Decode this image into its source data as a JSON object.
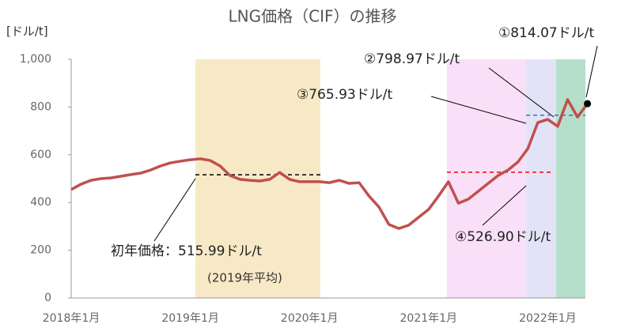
{
  "chart_data": {
    "type": "line",
    "title": "LNG価格（CIF）の推移",
    "y_label": "[ドル/t]",
    "categories": [
      "2018年1月",
      null,
      null,
      null,
      null,
      null,
      null,
      null,
      null,
      null,
      null,
      null,
      "2019年1月",
      null,
      null,
      null,
      null,
      null,
      null,
      null,
      null,
      null,
      null,
      null,
      "2020年1月",
      null,
      null,
      null,
      null,
      null,
      null,
      null,
      null,
      null,
      null,
      null,
      "2021年1月",
      null,
      null,
      null,
      null,
      null,
      null,
      null,
      null,
      null,
      null,
      null,
      "2022年1月",
      null,
      null,
      null,
      null
    ],
    "series": [
      {
        "name": "LNG価格",
        "color": "#c0504d",
        "values": [
          454,
          477,
          493,
          500,
          503,
          510,
          517,
          523,
          536,
          553,
          566,
          573,
          579,
          583,
          576,
          553,
          513,
          497,
          493,
          490,
          497,
          526,
          497,
          487,
          487,
          487,
          483,
          493,
          480,
          483,
          427,
          381,
          308,
          291,
          305,
          338,
          371,
          427,
          487,
          397,
          414,
          447,
          480,
          513,
          536,
          570,
          626,
          735,
          748,
          719,
          831,
          758,
          814.07
        ]
      }
    ],
    "ylim": [
      0,
      1000
    ],
    "yticks": [
      0,
      200,
      400,
      600,
      800,
      {
        "value": 1000,
        "label": "1,000"
      }
    ],
    "annotations": [
      {
        "value": 814.07,
        "label": "①814.07ドル/t"
      },
      {
        "value": 798.97,
        "label": "②798.97ドル/t"
      },
      {
        "value": 765.93,
        "label": "③765.93ドル/t",
        "color": "#2e75b6"
      },
      {
        "value": 526.9,
        "label": "④526.90ドル/t",
        "color": "#ff0000"
      },
      {
        "value": 515.99,
        "label": "初年価格：515.99ドル/t",
        "color": "#000000"
      }
    ],
    "note": "(2019年平均)"
  }
}
